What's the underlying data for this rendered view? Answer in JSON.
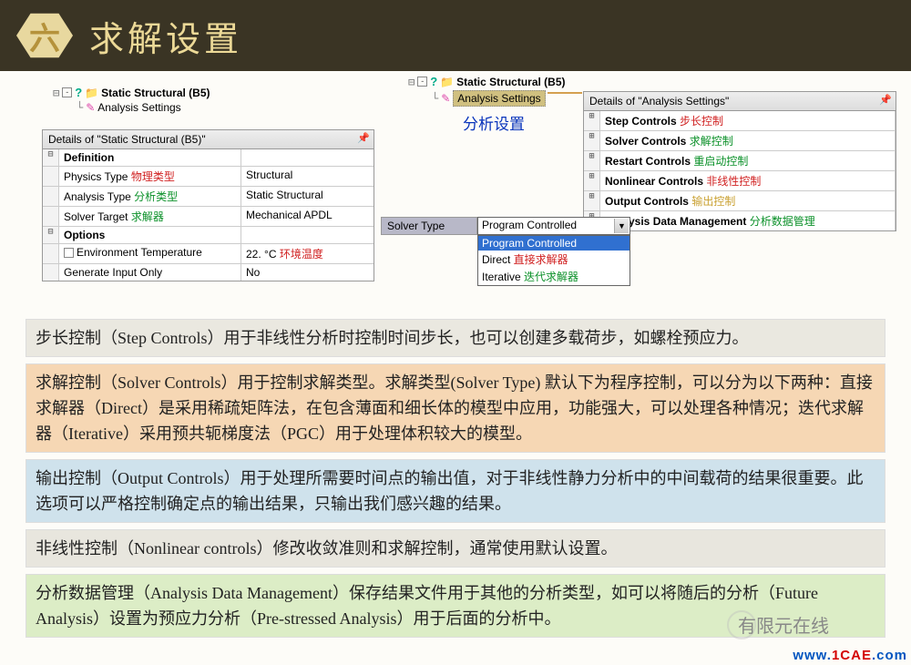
{
  "header": {
    "num": "六",
    "title": "求解设置"
  },
  "tree1": {
    "root": "Static Structural (B5)",
    "child": "Analysis Settings"
  },
  "tree2": {
    "root": "Static Structural (B5)",
    "child": "Analysis Settings",
    "annotation": "分析设置"
  },
  "panel1": {
    "title": "Details of \"Static Structural (B5)\"",
    "rows": [
      {
        "exp": "⊟",
        "a": "Definition",
        "bold": true
      },
      {
        "a": "Physics Type",
        "a_note": "物理类型",
        "note_color": "red",
        "b": "Structural"
      },
      {
        "a": "Analysis Type",
        "a_note": "分析类型",
        "note_color": "green",
        "b": "Static Structural"
      },
      {
        "a": "Solver Target",
        "a_note": "求解器",
        "note_color": "green",
        "b": "Mechanical APDL"
      },
      {
        "exp": "⊟",
        "a": "Options",
        "bold": true
      },
      {
        "a": "Environment Temperature",
        "checkbox": true,
        "b": "22. °C",
        "b_note": "环境温度",
        "b_note_color": "red"
      },
      {
        "a": "Generate Input Only",
        "b": "No"
      }
    ]
  },
  "panel2": {
    "title": "Details of \"Analysis Settings\"",
    "rows": [
      {
        "exp": "⊞",
        "a": "Step Controls",
        "note": "步长控制",
        "color": "red"
      },
      {
        "exp": "⊞",
        "a": "Solver Controls",
        "note": "求解控制",
        "color": "green"
      },
      {
        "exp": "⊞",
        "a": "Restart Controls",
        "note": "重启动控制",
        "color": "green"
      },
      {
        "exp": "⊞",
        "a": "Nonlinear Controls",
        "note": "非线性控制",
        "color": "red"
      },
      {
        "exp": "⊞",
        "a": "Output Controls",
        "note": "输出控制",
        "color": "#c9a030"
      },
      {
        "exp": "⊞",
        "a": "Analysis Data Management",
        "note": "分析数据管理",
        "color": "green"
      }
    ]
  },
  "solver": {
    "label": "Solver Type",
    "value": "Program Controlled",
    "opts": [
      {
        "t": "Program Controlled",
        "sel": true
      },
      {
        "t": "Direct",
        "note": "直接求解器",
        "c": "red"
      },
      {
        "t": "Iterative",
        "note": "迭代求解器",
        "c": "green"
      }
    ]
  },
  "paras": [
    {
      "cls": "pb-gray",
      "t": "步长控制（Step Controls）用于非线性分析时控制时间步长，也可以创建多载荷步，如螺栓预应力。"
    },
    {
      "cls": "pb-orange",
      "t": "求解控制（Solver Controls）用于控制求解类型。求解类型(Solver Type) 默认下为程序控制，可以分为以下两种：直接求解器（Direct）是采用稀疏矩阵法，在包含薄面和细长体的模型中应用，功能强大，可以处理各种情况；迭代求解器（Iterative）采用预共轭梯度法（PGC）用于处理体积较大的模型。"
    },
    {
      "cls": "pb-blue",
      "t": "输出控制（Output Controls）用于处理所需要时间点的输出值，对于非线性静力分析中的中间载荷的结果很重要。此选项可以严格控制确定点的输出结果，只输出我们感兴趣的结果。"
    },
    {
      "cls": "pb-gray2",
      "t": "非线性控制（Nonlinear controls）修改收敛准则和求解控制，通常使用默认设置。"
    },
    {
      "cls": "pb-green",
      "t": "分析数据管理（Analysis Data Management）保存结果文件用于其他的分析类型，如可以将随后的分析（Future Analysis）设置为预应力分析（Pre-stressed Analysis）用于后面的分析中。"
    }
  ],
  "watermark": {
    "cn": "有限元在线",
    "en_pre": "www.",
    "en_mid": "1CAE",
    "en_suf": ".com"
  }
}
